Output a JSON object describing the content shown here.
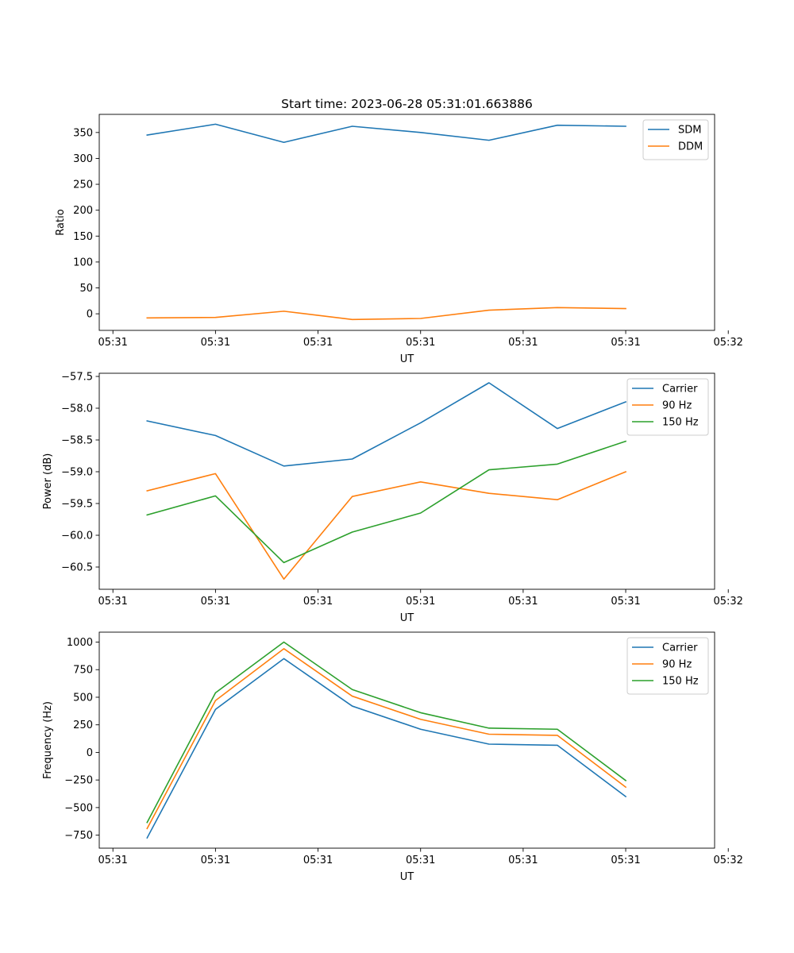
{
  "chart_data": [
    {
      "type": "line",
      "title": "Start time: 2023-06-28 05:31:01.663886",
      "xlabel": "UT",
      "ylabel": "Ratio",
      "x": [
        1,
        2,
        3,
        4,
        5,
        6,
        7,
        8
      ],
      "xlim": [
        0.3,
        9.3
      ],
      "x_ticks": [
        0.5,
        2,
        3.5,
        5,
        6.5,
        8,
        9.5
      ],
      "x_tick_labels": [
        "05:31",
        "05:31",
        "05:31",
        "05:31",
        "05:31",
        "05:31",
        "05:32"
      ],
      "ylim": [
        -32,
        385
      ],
      "y_ticks": [
        0,
        50,
        100,
        150,
        200,
        250,
        300,
        350
      ],
      "y_tick_labels": [
        "0",
        "50",
        "100",
        "150",
        "200",
        "250",
        "300",
        "350"
      ],
      "legend_position": "top-right",
      "series": [
        {
          "name": "SDM",
          "color": "#1f77b4",
          "values": [
            345,
            366,
            331,
            362,
            350,
            335,
            364,
            362
          ]
        },
        {
          "name": "DDM",
          "color": "#ff7f0e",
          "values": [
            -8,
            -7,
            5,
            -11,
            -9,
            7,
            12,
            10
          ]
        }
      ]
    },
    {
      "type": "line",
      "title": "",
      "xlabel": "UT",
      "ylabel": "Power (dB)",
      "x": [
        1,
        2,
        3,
        4,
        5,
        6,
        7,
        8
      ],
      "xlim": [
        0.3,
        9.3
      ],
      "x_ticks": [
        0.5,
        2,
        3.5,
        5,
        6.5,
        8,
        9.5
      ],
      "x_tick_labels": [
        "05:31",
        "05:31",
        "05:31",
        "05:31",
        "05:31",
        "05:31",
        "05:32"
      ],
      "ylim": [
        -60.85,
        -57.45
      ],
      "y_ticks": [
        -60.5,
        -60.0,
        -59.5,
        -59.0,
        -58.5,
        -58.0,
        -57.5
      ],
      "y_tick_labels": [
        "−60.5",
        "−60.0",
        "−59.5",
        "−59.0",
        "−58.5",
        "−58.0",
        "−57.5"
      ],
      "legend_position": "top-right",
      "series": [
        {
          "name": "Carrier",
          "color": "#1f77b4",
          "values": [
            -58.2,
            -58.43,
            -58.91,
            -58.8,
            -58.23,
            -57.6,
            -58.32,
            -57.9
          ]
        },
        {
          "name": "90 Hz",
          "color": "#ff7f0e",
          "values": [
            -59.3,
            -59.03,
            -60.69,
            -59.39,
            -59.16,
            -59.34,
            -59.44,
            -59.0
          ]
        },
        {
          "name": "150 Hz",
          "color": "#2ca02c",
          "values": [
            -59.68,
            -59.38,
            -60.43,
            -59.95,
            -59.65,
            -58.97,
            -58.88,
            -58.52
          ]
        }
      ]
    },
    {
      "type": "line",
      "title": "",
      "xlabel": "UT",
      "ylabel": "Frequency (Hz)",
      "x": [
        1,
        2,
        3,
        4,
        5,
        6,
        7,
        8
      ],
      "xlim": [
        0.3,
        9.3
      ],
      "x_ticks": [
        0.5,
        2,
        3.5,
        5,
        6.5,
        8,
        9.5
      ],
      "x_tick_labels": [
        "05:31",
        "05:31",
        "05:31",
        "05:31",
        "05:31",
        "05:31",
        "05:32"
      ],
      "ylim": [
        -868,
        1090
      ],
      "y_ticks": [
        -750,
        -500,
        -250,
        0,
        250,
        500,
        750,
        1000
      ],
      "y_tick_labels": [
        "−750",
        "−500",
        "−250",
        "0",
        "250",
        "500",
        "750",
        "1000"
      ],
      "legend_position": "top-right",
      "series": [
        {
          "name": "Carrier",
          "color": "#1f77b4",
          "values": [
            -775,
            390,
            850,
            420,
            210,
            75,
            65,
            -400
          ]
        },
        {
          "name": "90 Hz",
          "color": "#ff7f0e",
          "values": [
            -690,
            470,
            940,
            510,
            300,
            165,
            155,
            -315
          ]
        },
        {
          "name": "150 Hz",
          "color": "#2ca02c",
          "values": [
            -635,
            540,
            1000,
            570,
            360,
            220,
            210,
            -255
          ]
        }
      ]
    }
  ]
}
